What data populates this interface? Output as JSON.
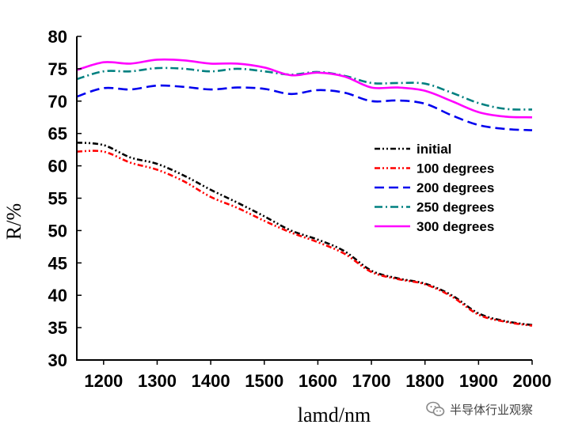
{
  "chart_data": {
    "type": "line",
    "xlabel": "lamd/nm",
    "ylabel": "R/%",
    "xlim": [
      1150,
      2000
    ],
    "ylim": [
      30,
      80
    ],
    "xticks": [
      1200,
      1300,
      1400,
      1500,
      1600,
      1700,
      1800,
      1900,
      2000
    ],
    "yticks": [
      30,
      35,
      40,
      45,
      50,
      55,
      60,
      65,
      70,
      75,
      80
    ],
    "legend_position": "right",
    "series": [
      {
        "name": "initial",
        "color": "#000000",
        "style": "dash-dot-dot",
        "x": [
          1150,
          1200,
          1250,
          1300,
          1350,
          1400,
          1450,
          1500,
          1550,
          1600,
          1650,
          1700,
          1750,
          1800,
          1850,
          1900,
          1950,
          2000
        ],
        "y": [
          63.6,
          63.2,
          61.3,
          60.3,
          58.5,
          56.3,
          54.3,
          52.2,
          50.0,
          48.6,
          46.8,
          43.8,
          42.6,
          41.8,
          40.0,
          37.2,
          36.0,
          35.4
        ]
      },
      {
        "name": "100 degrees",
        "color": "#ff0000",
        "style": "dash-dot-dot",
        "x": [
          1150,
          1200,
          1250,
          1300,
          1350,
          1400,
          1450,
          1500,
          1550,
          1600,
          1650,
          1700,
          1750,
          1800,
          1850,
          1900,
          1950,
          2000
        ],
        "y": [
          62.2,
          62.2,
          60.5,
          59.4,
          57.6,
          55.2,
          53.5,
          51.5,
          49.7,
          48.2,
          46.4,
          43.6,
          42.5,
          41.7,
          39.8,
          37.0,
          35.9,
          35.3
        ]
      },
      {
        "name": "200 degrees",
        "color": "#0000ee",
        "style": "dash",
        "x": [
          1150,
          1200,
          1250,
          1300,
          1350,
          1400,
          1450,
          1500,
          1550,
          1600,
          1650,
          1700,
          1750,
          1800,
          1850,
          1900,
          1950,
          2000
        ],
        "y": [
          70.7,
          72.0,
          71.8,
          72.4,
          72.2,
          71.8,
          72.1,
          71.9,
          71.1,
          71.7,
          71.3,
          70.0,
          70.1,
          69.6,
          67.8,
          66.3,
          65.7,
          65.5
        ]
      },
      {
        "name": "250 degrees",
        "color": "#008080",
        "style": "dash-dot",
        "x": [
          1150,
          1200,
          1250,
          1300,
          1350,
          1400,
          1450,
          1500,
          1550,
          1600,
          1650,
          1700,
          1750,
          1800,
          1850,
          1900,
          1950,
          2000
        ],
        "y": [
          73.4,
          74.6,
          74.6,
          75.1,
          75.0,
          74.6,
          75.0,
          74.6,
          74.1,
          74.5,
          73.9,
          72.8,
          72.8,
          72.7,
          71.3,
          69.7,
          68.8,
          68.7
        ]
      },
      {
        "name": "300 degrees",
        "color": "#ff00ff",
        "style": "solid",
        "x": [
          1150,
          1200,
          1250,
          1300,
          1350,
          1400,
          1450,
          1500,
          1550,
          1600,
          1650,
          1700,
          1750,
          1800,
          1850,
          1900,
          1950,
          2000
        ],
        "y": [
          74.8,
          76.0,
          75.8,
          76.4,
          76.3,
          75.8,
          75.8,
          75.2,
          74.0,
          74.4,
          73.8,
          72.1,
          72.1,
          71.6,
          70.0,
          68.3,
          67.6,
          67.5
        ]
      }
    ]
  },
  "watermark": {
    "text": "半导体行业观察",
    "icon": "wechat-icon"
  }
}
